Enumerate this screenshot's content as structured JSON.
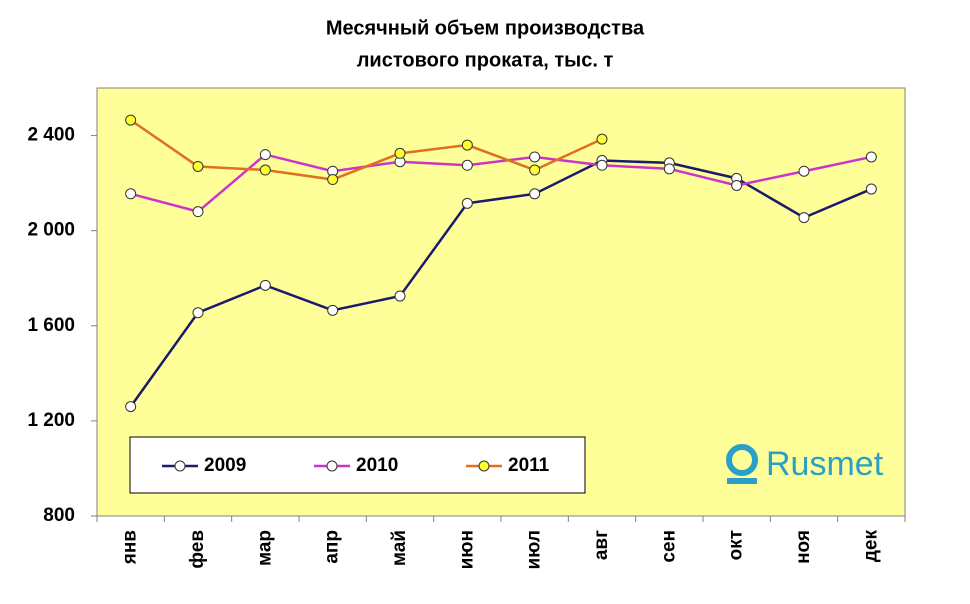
{
  "chart_data": {
    "type": "line",
    "title": "Месячный объем производства",
    "subtitle": "листового проката, тыс. т",
    "categories": [
      "янв",
      "фев",
      "мар",
      "апр",
      "май",
      "июн",
      "июл",
      "авг",
      "сен",
      "окт",
      "ноя",
      "дек"
    ],
    "series": [
      {
        "name": "2009",
        "color": "#1a1a6e",
        "marker_color": "#ffffff",
        "values": [
          1260,
          1655,
          1770,
          1665,
          1725,
          2115,
          2155,
          2295,
          2285,
          2220,
          2055,
          2175
        ]
      },
      {
        "name": "2010",
        "color": "#cc33cc",
        "marker_color": "#ffffff",
        "values": [
          2155,
          2080,
          2320,
          2250,
          2290,
          2275,
          2310,
          2275,
          2260,
          2190,
          2250,
          2310
        ]
      },
      {
        "name": "2011",
        "color": "#e07020",
        "marker_color": "#ffff33",
        "values": [
          2465,
          2270,
          2255,
          2215,
          2325,
          2360,
          2255,
          2385,
          null,
          null,
          null,
          null
        ]
      }
    ],
    "ylim": [
      800,
      2600
    ],
    "yticks": [
      800,
      {
        "value": 1200,
        "label": "1 200"
      },
      {
        "value": 1600,
        "label": "1 600"
      },
      {
        "value": 2000,
        "label": "2 000"
      },
      {
        "value": 2400,
        "label": "2 400"
      }
    ],
    "grid": false,
    "legend": "bottom-left",
    "plot_background": "#ffff99",
    "logo": "Rusmet"
  }
}
